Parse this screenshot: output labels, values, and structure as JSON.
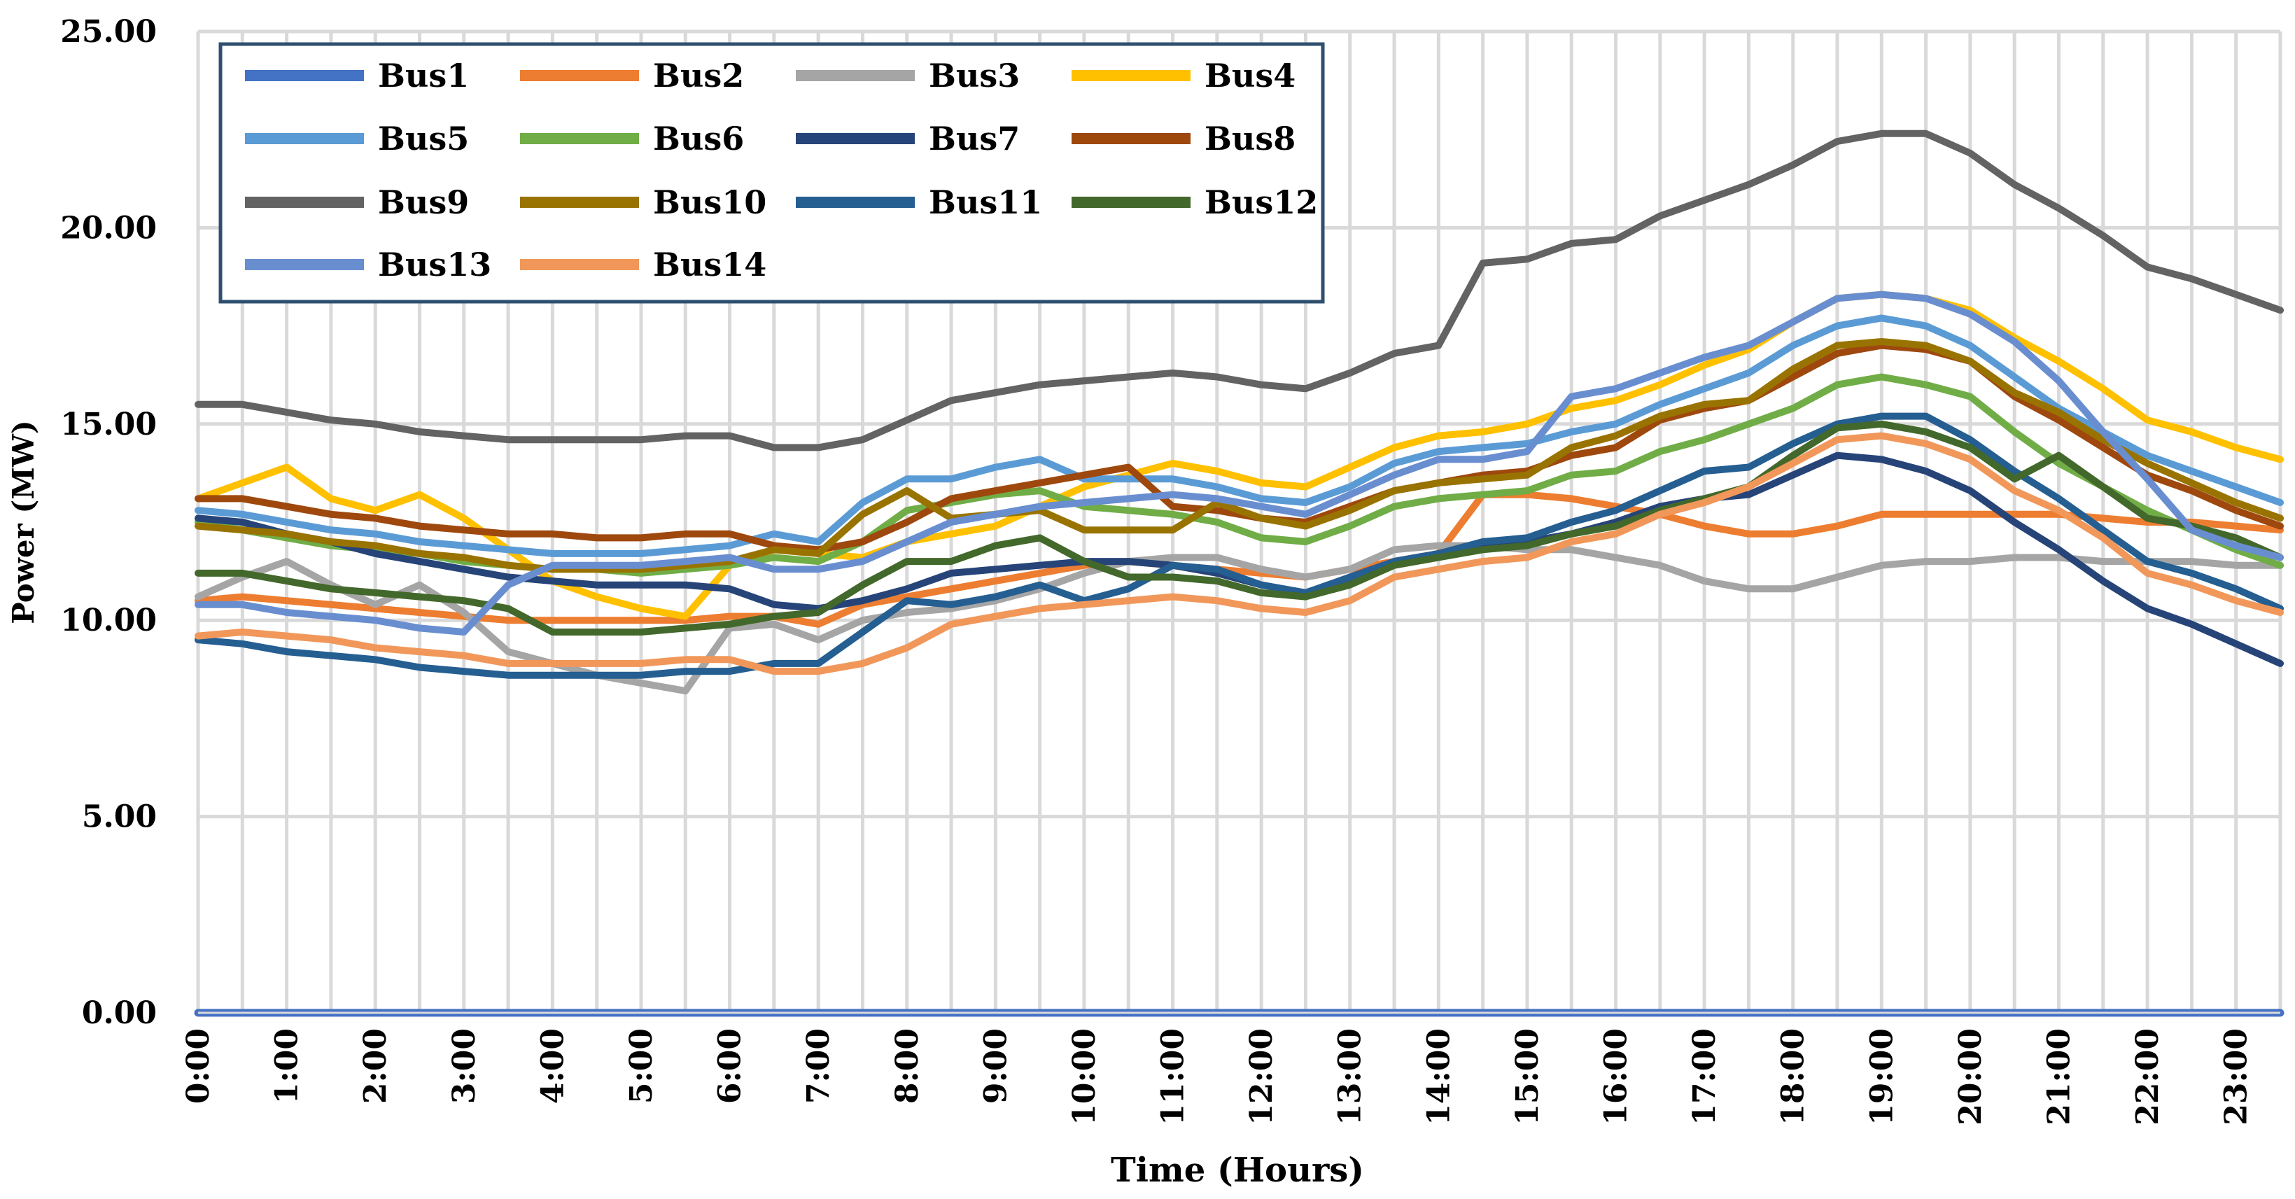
{
  "chart_data": {
    "type": "line",
    "title": "",
    "xlabel": "Time (Hours)",
    "ylabel": "Power (MW)",
    "ylim": [
      0,
      25
    ],
    "grid": true,
    "legend_position": "top-left",
    "x": [
      "0:00",
      "0:30",
      "1:00",
      "1:30",
      "2:00",
      "2:30",
      "3:00",
      "3:30",
      "4:00",
      "4:30",
      "5:00",
      "5:30",
      "6:00",
      "6:30",
      "7:00",
      "7:30",
      "8:00",
      "8:30",
      "9:00",
      "9:30",
      "10:00",
      "10:30",
      "11:00",
      "11:30",
      "12:00",
      "12:30",
      "13:00",
      "13:30",
      "14:00",
      "14:30",
      "15:00",
      "15:30",
      "16:00",
      "16:30",
      "17:00",
      "17:30",
      "18:00",
      "18:30",
      "19:00",
      "19:30",
      "20:00",
      "20:30",
      "21:00",
      "21:30",
      "22:00",
      "22:30",
      "23:00",
      "23:30"
    ],
    "xticks": [
      "0:00",
      "1:00",
      "2:00",
      "3:00",
      "4:00",
      "5:00",
      "6:00",
      "7:00",
      "8:00",
      "9:00",
      "10:00",
      "11:00",
      "12:00",
      "13:00",
      "14:00",
      "15:00",
      "16:00",
      "17:00",
      "18:00",
      "19:00",
      "20:00",
      "21:00",
      "22:00",
      "23:00"
    ],
    "yticks": [
      "0.00",
      "5.00",
      "10.00",
      "15.00",
      "20.00",
      "25.00"
    ],
    "series": [
      {
        "name": "Bus1",
        "color": "#4472C4",
        "values": [
          0,
          0,
          0,
          0,
          0,
          0,
          0,
          0,
          0,
          0,
          0,
          0,
          0,
          0,
          0,
          0,
          0,
          0,
          0,
          0,
          0,
          0,
          0,
          0,
          0,
          0,
          0,
          0,
          0,
          0,
          0,
          0,
          0,
          0,
          0,
          0,
          0,
          0,
          0,
          0,
          0,
          0,
          0,
          0,
          0,
          0,
          0,
          0
        ]
      },
      {
        "name": "Bus2",
        "color": "#ED7D31",
        "values": [
          10.5,
          10.6,
          10.5,
          10.4,
          10.3,
          10.2,
          10.1,
          10.0,
          10.0,
          10.0,
          10.0,
          10.0,
          10.1,
          10.1,
          9.9,
          10.4,
          10.6,
          10.8,
          11.0,
          11.2,
          11.4,
          11.5,
          11.4,
          11.3,
          11.2,
          11.1,
          11.3,
          11.5,
          11.7,
          13.2,
          13.2,
          13.1,
          12.9,
          12.7,
          12.4,
          12.2,
          12.2,
          12.4,
          12.7,
          12.7,
          12.7,
          12.7,
          12.7,
          12.6,
          12.5,
          12.5,
          12.4,
          12.3
        ]
      },
      {
        "name": "Bus3",
        "color": "#A5A5A5",
        "values": [
          10.6,
          11.1,
          11.5,
          10.9,
          10.4,
          10.9,
          10.2,
          9.2,
          8.9,
          8.6,
          8.4,
          8.2,
          9.8,
          9.9,
          9.5,
          10.0,
          10.2,
          10.3,
          10.5,
          10.8,
          11.2,
          11.5,
          11.6,
          11.6,
          11.3,
          11.1,
          11.3,
          11.8,
          11.9,
          11.9,
          11.8,
          11.8,
          11.6,
          11.4,
          11.0,
          10.8,
          10.8,
          11.1,
          11.4,
          11.5,
          11.5,
          11.6,
          11.6,
          11.5,
          11.5,
          11.5,
          11.4,
          11.4
        ]
      },
      {
        "name": "Bus4",
        "color": "#FFC000",
        "values": [
          13.1,
          13.5,
          13.9,
          13.1,
          12.8,
          13.2,
          12.6,
          11.8,
          11.0,
          10.6,
          10.3,
          10.1,
          11.4,
          11.8,
          11.7,
          11.6,
          12.0,
          12.2,
          12.4,
          12.9,
          13.4,
          13.7,
          14.0,
          13.8,
          13.5,
          13.4,
          13.9,
          14.4,
          14.7,
          14.8,
          15.0,
          15.4,
          15.6,
          16.0,
          16.5,
          16.9,
          17.6,
          18.2,
          18.3,
          18.2,
          17.9,
          17.2,
          16.6,
          15.9,
          15.1,
          14.8,
          14.4,
          14.1
        ]
      },
      {
        "name": "Bus5",
        "color": "#5B9BD5",
        "values": [
          12.8,
          12.7,
          12.5,
          12.3,
          12.2,
          12.0,
          11.9,
          11.8,
          11.7,
          11.7,
          11.7,
          11.8,
          11.9,
          12.2,
          12.0,
          13.0,
          13.6,
          13.6,
          13.9,
          14.1,
          13.6,
          13.6,
          13.6,
          13.4,
          13.1,
          13.0,
          13.4,
          14.0,
          14.3,
          14.4,
          14.5,
          14.8,
          15.0,
          15.5,
          15.9,
          16.3,
          17.0,
          17.5,
          17.7,
          17.5,
          17.0,
          16.2,
          15.4,
          14.8,
          14.2,
          13.8,
          13.4,
          13.0
        ]
      },
      {
        "name": "Bus6",
        "color": "#70AD47",
        "values": [
          12.5,
          12.3,
          12.1,
          11.9,
          11.8,
          11.7,
          11.5,
          11.4,
          11.3,
          11.3,
          11.2,
          11.3,
          11.4,
          11.6,
          11.5,
          12.0,
          12.8,
          13.0,
          13.2,
          13.3,
          12.9,
          12.8,
          12.7,
          12.5,
          12.1,
          12.0,
          12.4,
          12.9,
          13.1,
          13.2,
          13.3,
          13.7,
          13.8,
          14.3,
          14.6,
          15.0,
          15.4,
          16.0,
          16.2,
          16.0,
          15.7,
          14.8,
          14.0,
          13.4,
          12.8,
          12.3,
          11.8,
          11.4
        ]
      },
      {
        "name": "Bus7",
        "color": "#264478",
        "values": [
          12.6,
          12.5,
          12.2,
          12.0,
          11.7,
          11.5,
          11.3,
          11.1,
          11.0,
          10.9,
          10.9,
          10.9,
          10.8,
          10.4,
          10.3,
          10.5,
          10.8,
          11.2,
          11.3,
          11.4,
          11.5,
          11.5,
          11.4,
          11.2,
          10.9,
          10.7,
          11.0,
          11.5,
          11.7,
          11.9,
          12.0,
          12.2,
          12.5,
          12.9,
          13.1,
          13.2,
          13.7,
          14.2,
          14.1,
          13.8,
          13.3,
          12.5,
          11.8,
          11.0,
          10.3,
          9.9,
          9.4,
          8.9
        ]
      },
      {
        "name": "Bus8",
        "color": "#9E480E",
        "values": [
          13.1,
          13.1,
          12.9,
          12.7,
          12.6,
          12.4,
          12.3,
          12.2,
          12.2,
          12.1,
          12.1,
          12.2,
          12.2,
          11.9,
          11.8,
          12.0,
          12.5,
          13.1,
          13.3,
          13.5,
          13.7,
          13.9,
          12.9,
          12.8,
          12.6,
          12.5,
          12.9,
          13.3,
          13.5,
          13.7,
          13.8,
          14.2,
          14.4,
          15.1,
          15.4,
          15.6,
          16.2,
          16.8,
          17.0,
          16.9,
          16.6,
          15.7,
          15.1,
          14.4,
          13.7,
          13.3,
          12.8,
          12.4
        ]
      },
      {
        "name": "Bus9",
        "color": "#636363",
        "values": [
          15.5,
          15.5,
          15.3,
          15.1,
          15.0,
          14.8,
          14.7,
          14.6,
          14.6,
          14.6,
          14.6,
          14.7,
          14.7,
          14.4,
          14.4,
          14.6,
          15.1,
          15.6,
          15.8,
          16.0,
          16.1,
          16.2,
          16.3,
          16.2,
          16.0,
          15.9,
          16.3,
          16.8,
          17.0,
          19.1,
          19.2,
          19.6,
          19.7,
          20.3,
          20.7,
          21.1,
          21.6,
          22.2,
          22.4,
          22.4,
          21.9,
          21.1,
          20.5,
          19.8,
          19.0,
          18.7,
          18.3,
          17.9
        ]
      },
      {
        "name": "Bus10",
        "color": "#997300",
        "values": [
          12.4,
          12.3,
          12.2,
          12.0,
          11.9,
          11.7,
          11.6,
          11.4,
          11.3,
          11.3,
          11.3,
          11.4,
          11.5,
          11.8,
          11.7,
          12.7,
          13.3,
          12.6,
          12.7,
          12.8,
          12.3,
          12.3,
          12.3,
          13.0,
          12.6,
          12.4,
          12.8,
          13.3,
          13.5,
          13.6,
          13.7,
          14.4,
          14.7,
          15.2,
          15.5,
          15.6,
          16.4,
          17.0,
          17.1,
          17.0,
          16.6,
          15.8,
          15.3,
          14.6,
          14.0,
          13.5,
          13.0,
          12.6
        ]
      },
      {
        "name": "Bus11",
        "color": "#255E91",
        "values": [
          9.5,
          9.4,
          9.2,
          9.1,
          9.0,
          8.8,
          8.7,
          8.6,
          8.6,
          8.6,
          8.6,
          8.7,
          8.7,
          8.9,
          8.9,
          9.7,
          10.5,
          10.4,
          10.6,
          10.9,
          10.5,
          10.8,
          11.4,
          11.3,
          10.9,
          10.7,
          11.1,
          11.5,
          11.7,
          12.0,
          12.1,
          12.5,
          12.8,
          13.3,
          13.8,
          13.9,
          14.5,
          15.0,
          15.2,
          15.2,
          14.6,
          13.8,
          13.1,
          12.3,
          11.5,
          11.2,
          10.8,
          10.3
        ]
      },
      {
        "name": "Bus12",
        "color": "#43682B",
        "values": [
          11.2,
          11.2,
          11.0,
          10.8,
          10.7,
          10.6,
          10.5,
          10.3,
          9.7,
          9.7,
          9.7,
          9.8,
          9.9,
          10.1,
          10.2,
          10.9,
          11.5,
          11.5,
          11.9,
          12.1,
          11.5,
          11.1,
          11.1,
          11.0,
          10.7,
          10.6,
          10.9,
          11.4,
          11.6,
          11.8,
          11.9,
          12.2,
          12.4,
          12.8,
          13.1,
          13.4,
          14.2,
          14.9,
          15.0,
          14.8,
          14.4,
          13.6,
          14.2,
          13.4,
          12.6,
          12.4,
          12.1,
          11.6
        ]
      },
      {
        "name": "Bus13",
        "color": "#698ED0",
        "values": [
          10.4,
          10.4,
          10.2,
          10.1,
          10.0,
          9.8,
          9.7,
          10.9,
          11.4,
          11.4,
          11.4,
          11.5,
          11.6,
          11.3,
          11.3,
          11.5,
          12.0,
          12.5,
          12.7,
          12.9,
          13.0,
          13.1,
          13.2,
          13.1,
          12.9,
          12.7,
          13.2,
          13.7,
          14.1,
          14.1,
          14.3,
          15.7,
          15.9,
          16.3,
          16.7,
          17.0,
          17.6,
          18.2,
          18.3,
          18.2,
          17.8,
          17.1,
          16.1,
          14.8,
          13.6,
          12.3,
          11.9,
          11.6
        ]
      },
      {
        "name": "Bus14",
        "color": "#F1975A",
        "values": [
          9.6,
          9.7,
          9.6,
          9.5,
          9.3,
          9.2,
          9.1,
          8.9,
          8.9,
          8.9,
          8.9,
          9.0,
          9.0,
          8.7,
          8.7,
          8.9,
          9.3,
          9.9,
          10.1,
          10.3,
          10.4,
          10.5,
          10.6,
          10.5,
          10.3,
          10.2,
          10.5,
          11.1,
          11.3,
          11.5,
          11.6,
          12.0,
          12.2,
          12.7,
          13.0,
          13.4,
          14.0,
          14.6,
          14.7,
          14.5,
          14.1,
          13.3,
          12.8,
          12.1,
          11.2,
          10.9,
          10.5,
          10.2
        ]
      }
    ]
  }
}
